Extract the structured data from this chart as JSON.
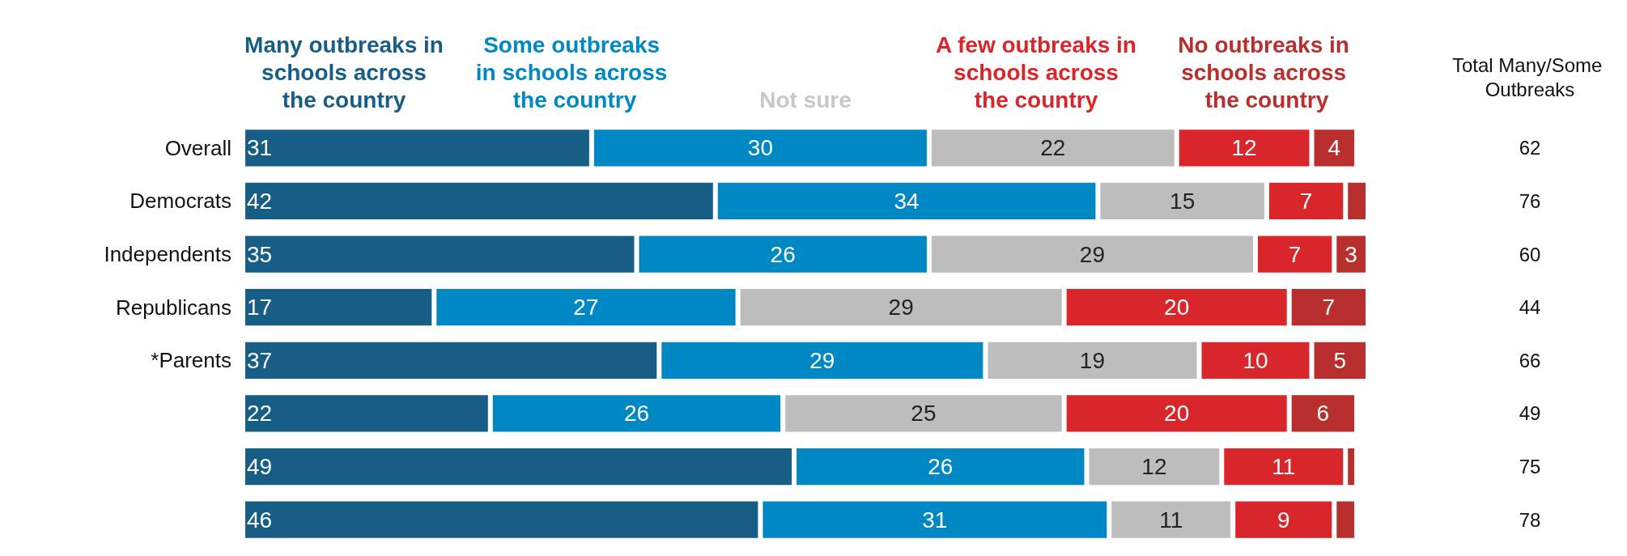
{
  "chart_data": {
    "type": "bar",
    "orientation": "horizontal",
    "stacked": true,
    "legend": "top",
    "tick_labels": "y",
    "categories": [
      "Overall",
      "Democrats",
      "Independents",
      "Republicans",
      "*Parents",
      null,
      null,
      null
    ],
    "xlim": [
      0,
      100
    ],
    "series": [
      {
        "name": "Many outbreaks in schools across the country",
        "color": "#175e87",
        "values": [
          31,
          42,
          35,
          17,
          37,
          22,
          49,
          46
        ],
        "value_labels": [
          "31",
          "42",
          "35",
          "17",
          "37",
          "22",
          "49",
          "46"
        ]
      },
      {
        "name": "Some outbreaks in schools across the country",
        "color": "#0088c4",
        "values": [
          30,
          34,
          26,
          27,
          29,
          26,
          26,
          31
        ],
        "value_labels": [
          "30",
          "34",
          "26",
          "27",
          "29",
          "26",
          "26",
          "31"
        ]
      },
      {
        "name": "Not sure",
        "color": "#bdbdbd",
        "values": [
          22,
          15,
          29,
          29,
          19,
          25,
          12,
          11
        ],
        "value_labels": [
          "22",
          "15",
          "29",
          "29",
          "19",
          "25",
          "12",
          "11"
        ]
      },
      {
        "name": "A few outbreaks in schools across the country",
        "color": "#d9262b",
        "values": [
          12,
          7,
          7,
          20,
          10,
          20,
          11,
          9
        ],
        "value_labels": [
          "12",
          "7",
          "7",
          "20",
          "10",
          "20",
          "11",
          "9"
        ]
      },
      {
        "name": "No outbreaks in schools across the country",
        "color": "#b82f2d",
        "values": [
          4,
          2,
          3,
          7,
          5,
          6,
          1,
          2
        ],
        "value_labels": [
          "4",
          null,
          "3",
          "7",
          "5",
          "6",
          null,
          null
        ]
      }
    ],
    "annotations": [
      "Total Many/Some Outbreaks",
      "62",
      "76",
      "60",
      "44",
      "66",
      "49",
      "75",
      "78"
    ]
  }
}
